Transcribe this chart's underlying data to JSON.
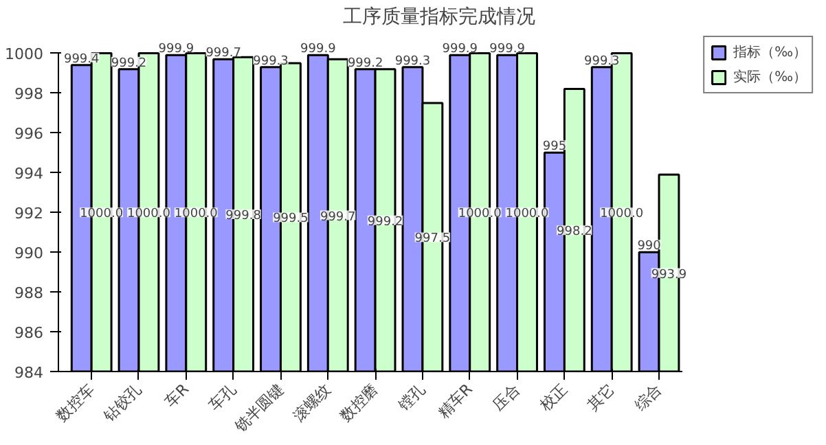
{
  "chart_data": {
    "type": "bar",
    "title": "工序质量指标完成情况",
    "categories": [
      "数控车",
      "钻铰孔",
      "车R",
      "车孔",
      "铣半圆键",
      "滚螺纹",
      "数控磨",
      "镗孔",
      "精车R",
      "压合",
      "校正",
      "其它",
      "综合"
    ],
    "series": [
      {
        "name": "指标（‰）",
        "color": "#9999ff",
        "values": [
          999.4,
          999.2,
          999.9,
          999.7,
          999.3,
          999.9,
          999.2,
          999.3,
          999.9,
          999.9,
          995,
          999.3,
          990
        ],
        "value_labels": [
          "999.4",
          "999.2",
          "999.9",
          "999.7",
          "999.3",
          "999.9",
          "999.2",
          "999.3",
          "999.9",
          "999.9",
          "995",
          "999.3",
          "990"
        ]
      },
      {
        "name": "实际（‰）",
        "color": "#ccffcc",
        "values": [
          1000.0,
          1000.0,
          1000.0,
          999.8,
          999.5,
          999.7,
          999.2,
          997.5,
          1000.0,
          1000.0,
          998.2,
          1000.0,
          993.9
        ],
        "value_labels": [
          "1000.0",
          "1000.0",
          "1000.0",
          "999.8",
          "999.5",
          "999.7",
          "999.2",
          "997.5",
          "1000.0",
          "1000.0",
          "998.2",
          "1000.0",
          "993.9"
        ]
      }
    ],
    "ylim": [
      984,
      1000
    ],
    "yticks": [
      984,
      986,
      988,
      990,
      992,
      994,
      996,
      998,
      1000
    ],
    "grid": false,
    "legend": "top right"
  }
}
